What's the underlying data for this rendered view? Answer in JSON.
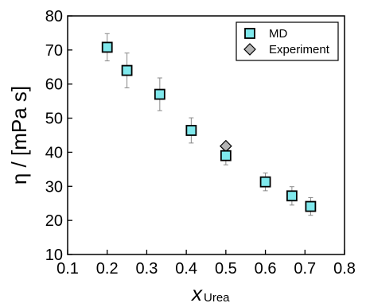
{
  "chart_data": {
    "type": "scatter",
    "title": "",
    "xlabel": "x",
    "xlabel_subscript": "Urea",
    "ylabel": "η / [mPa s]",
    "xlim": [
      0.1,
      0.8
    ],
    "ylim": [
      10,
      80
    ],
    "xticks": [
      "0.1",
      "0.2",
      "0.3",
      "0.4",
      "0.5",
      "0.6",
      "0.7",
      "0.8"
    ],
    "yticks": [
      "10",
      "20",
      "30",
      "40",
      "50",
      "60",
      "70",
      "80"
    ],
    "grid": false,
    "legend_position": "top-right",
    "series": [
      {
        "name": "MD",
        "marker": "square",
        "color": "#7fe8ec",
        "x": [
          0.2,
          0.25,
          0.333,
          0.4125,
          0.5,
          0.6,
          0.667,
          0.7143
        ],
        "y": [
          70.8,
          64.0,
          57.0,
          46.4,
          39.0,
          31.3,
          27.2,
          24.1
        ],
        "error": [
          4.0,
          5.1,
          4.8,
          3.7,
          2.7,
          2.6,
          2.7,
          2.6
        ]
      },
      {
        "name": "Experiment",
        "marker": "diamond",
        "color": "#b4b4b4",
        "x": [
          0.5
        ],
        "y": [
          41.8
        ]
      }
    ]
  }
}
